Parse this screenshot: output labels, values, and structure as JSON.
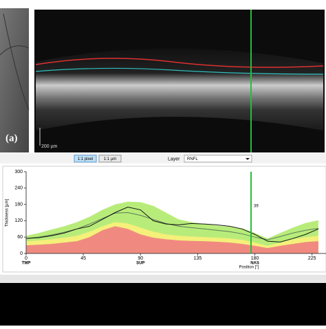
{
  "image_panel": {
    "panel_label": "(a)",
    "scale_bar": "200 µm"
  },
  "toolbar": {
    "zoom_pixel": "1:1 pixel",
    "zoom_um": "1:1 µm",
    "layer_label": "Layer",
    "layer_value": "RNFL"
  },
  "chart_data": {
    "type": "line",
    "x_label": "Position [°]",
    "y_label": "Thickness [µm]",
    "x": [
      0,
      10,
      20,
      30,
      40,
      50,
      60,
      70,
      80,
      90,
      100,
      110,
      120,
      130,
      140,
      150,
      160,
      170,
      180,
      190,
      200,
      210,
      220,
      230
    ],
    "bands": [
      {
        "color": "#b8ec7a",
        "values": [
          65,
          75,
          88,
          100,
          115,
          135,
          160,
          180,
          190,
          188,
          175,
          150,
          125,
          115,
          108,
          102,
          98,
          92,
          75,
          55,
          75,
          95,
          112,
          122
        ]
      },
      {
        "color": "#f4f07a",
        "values": [
          45,
          48,
          52,
          58,
          65,
          80,
          100,
          115,
          110,
          95,
          80,
          70,
          65,
          62,
          60,
          58,
          55,
          50,
          40,
          28,
          40,
          52,
          60,
          65
        ]
      },
      {
        "color": "#f08a80",
        "values": [
          30,
          32,
          35,
          40,
          45,
          60,
          85,
          100,
          90,
          70,
          58,
          52,
          48,
          46,
          45,
          43,
          40,
          35,
          28,
          20,
          28,
          35,
          42,
          45
        ]
      }
    ],
    "series": [
      {
        "color": "#5a7a5a",
        "values": [
          55,
          60,
          68,
          78,
          90,
          108,
          128,
          148,
          150,
          140,
          125,
          110,
          100,
          95,
          90,
          85,
          80,
          72,
          60,
          50,
          62,
          75,
          85,
          92
        ]
      },
      {
        "color": "#111111",
        "values": [
          55,
          58,
          65,
          75,
          90,
          100,
          125,
          150,
          170,
          160,
          120,
          108,
          105,
          110,
          108,
          105,
          100,
          90,
          70,
          45,
          42,
          55,
          70,
          90
        ]
      }
    ],
    "xlim": [
      0,
      236
    ],
    "xticks": [
      0,
      45,
      90,
      135,
      180,
      225
    ],
    "ylim": [
      0,
      300
    ],
    "yticks": [
      0,
      60,
      120,
      180,
      240,
      300
    ],
    "region_labels": [
      {
        "x": 0,
        "label": "TMP"
      },
      {
        "x": 90,
        "label": "SUP"
      },
      {
        "x": 180,
        "label": "NAS"
      }
    ],
    "marker": {
      "x": 177,
      "label": "39",
      "color": "#22c03a"
    }
  }
}
